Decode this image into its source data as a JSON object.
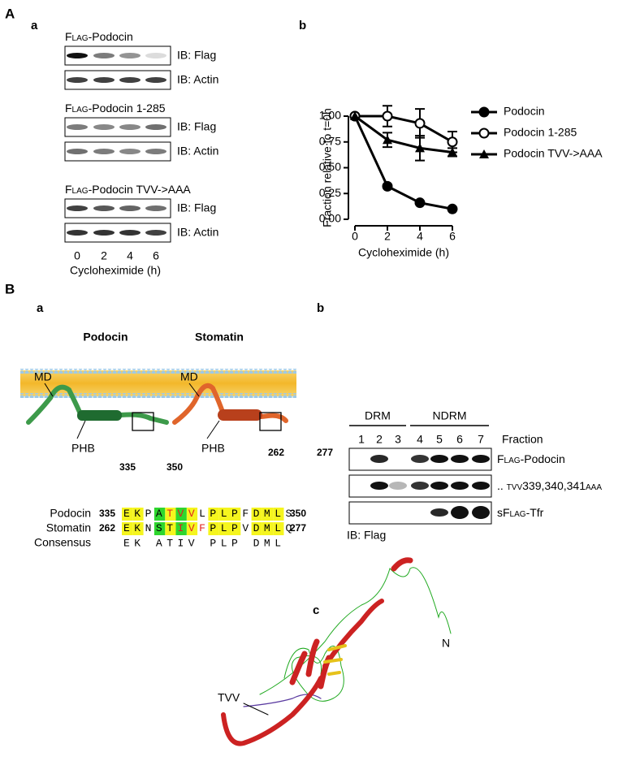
{
  "panel_labels": {
    "A": "A",
    "Aa": "a",
    "Ab": "b",
    "B": "B",
    "Ba": "a",
    "Bb": "b",
    "Bc": "c"
  },
  "figure_a": {
    "blots": [
      {
        "tag": "Flag",
        "name": "-Podocin",
        "rows": [
          "IB: Flag",
          "IB: Actin"
        ]
      },
      {
        "tag": "Flag",
        "name": "-Podocin 1-285",
        "rows": [
          "IB: Flag",
          "IB: Actin"
        ]
      },
      {
        "tag": "Flag",
        "name": "-Podocin TVV->AAA",
        "rows": [
          "IB: Flag",
          "IB: Actin"
        ]
      }
    ],
    "lanes": [
      "0",
      "2",
      "4",
      "6"
    ],
    "xlabel": "Cycloheximide (h)"
  },
  "chart_data": {
    "type": "line",
    "ylabel": "Fraction relative to t=0h",
    "xlabel": "Cycloheximide (h)",
    "x": [
      0,
      2,
      4,
      6
    ],
    "xlim": [
      0,
      6
    ],
    "xticks": [
      0,
      2,
      4,
      6
    ],
    "ylim": [
      0,
      1
    ],
    "yticks": [
      {
        "value": 0,
        "label": "0.00"
      },
      {
        "value": 0.25,
        "label": "0.25"
      },
      {
        "value": 0.5,
        "label": "0.50"
      },
      {
        "value": 0.75,
        "label": "0.75"
      },
      {
        "value": 1,
        "label": "1.00"
      }
    ],
    "legend": "right",
    "series": [
      {
        "name": "Podocin",
        "color": "#000000",
        "marker": "filled-circle",
        "values": [
          1,
          0.32,
          0.16,
          0.1
        ]
      },
      {
        "name": "Podocin 1-285",
        "color": "#000000",
        "marker": "open-circle",
        "values": [
          1,
          1,
          0.93,
          0.75
        ],
        "errors": [
          0,
          0.1,
          0.14,
          0.1
        ]
      },
      {
        "name": "Podocin TVV->AAA",
        "color": "#000000",
        "marker": "triangle",
        "values": [
          1,
          0.77,
          0.69,
          0.65
        ],
        "errors": [
          0,
          0.07,
          0.12,
          0.04
        ]
      }
    ]
  },
  "figure_ba": {
    "proteins": [
      "Podocin",
      "Stomatin"
    ],
    "md": [
      "MD",
      "MD"
    ],
    "phb": [
      "PHB",
      "PHB"
    ],
    "ranges": [
      [
        "335",
        "350"
      ],
      [
        "262",
        "277"
      ]
    ],
    "alignment": [
      {
        "label": "Podocin",
        "start": "335",
        "segments": [
          "EKPA",
          "TVV",
          "LPLPFDMLS"
        ],
        "end": "350"
      },
      {
        "label": "Stomatin",
        "start": "262",
        "segments": [
          "EKNST",
          "IVF",
          "PLPVDMLQ"
        ],
        "end": "277"
      },
      {
        "label": "Consensus",
        "sequence": "EK ATIV PLP DML"
      }
    ]
  },
  "figure_bb": {
    "groups": [
      "DRM",
      "NDRM"
    ],
    "fractions": [
      "1",
      "2",
      "3",
      "4",
      "5",
      "6",
      "7"
    ],
    "fraction_label": "Fraction",
    "rows": [
      [
        {
          "t": "Flag",
          "sc": true
        },
        {
          "t": "-Podocin"
        }
      ],
      [
        {
          "t": ".. "
        },
        {
          "t": "tvv",
          "sc": true
        },
        {
          "t": "339,340,341"
        },
        {
          "t": "aaa",
          "sc": true
        }
      ],
      [
        {
          "t": "s"
        },
        {
          "t": "Flag",
          "sc": true
        },
        {
          "t": "-Tfr"
        }
      ]
    ],
    "ib": "IB: Flag"
  },
  "figure_bc": {
    "tvv": "TVV",
    "n": "N"
  }
}
